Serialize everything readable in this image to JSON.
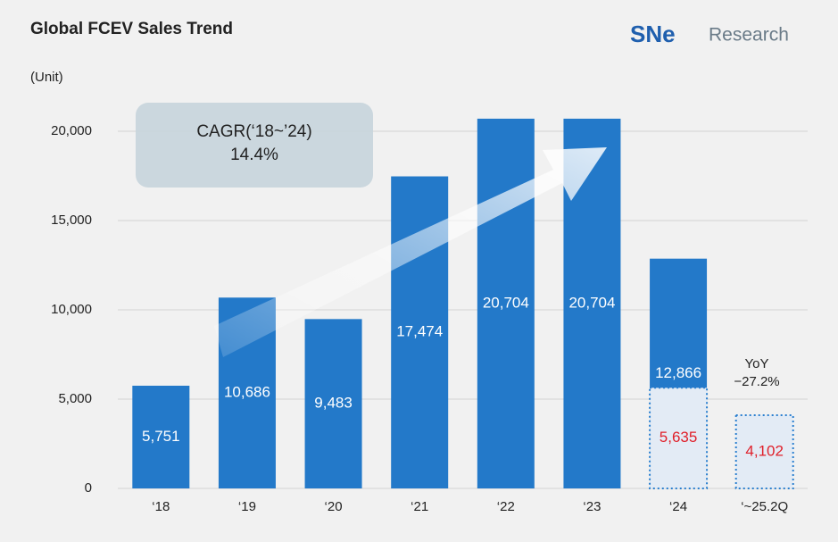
{
  "chart_data": {
    "type": "bar",
    "title": "Global FCEV Sales Trend",
    "logo": {
      "brand": "SNe",
      "suffix": "Research"
    },
    "unit_label": "(Unit)",
    "annotations": {
      "cagr_title": "CAGR(‘18~’24)",
      "cagr_value": "14.4%",
      "yoy_title": "YoY",
      "yoy_value": "−27.2%"
    },
    "categories": [
      "‘18",
      "‘19",
      "‘20",
      "‘21",
      "‘22",
      "‘23",
      "‘24",
      "‘~25.2Q"
    ],
    "series": [
      {
        "color": "#2379c9",
        "values": [
          5751,
          10686,
          9483,
          17474,
          20704,
          20704,
          12866,
          null
        ],
        "value_labels": [
          "5,751",
          "10,686",
          "9,483",
          "17,474",
          "20,704",
          "20,704",
          "12,866",
          null
        ],
        "label_color": "#ffffff"
      },
      {
        "color": "#2a7fcf",
        "values": [
          null,
          null,
          null,
          null,
          null,
          null,
          5635,
          4102
        ],
        "value_labels": [
          null,
          null,
          null,
          null,
          null,
          null,
          "5,635",
          "4,102"
        ],
        "label_color": "#e0202a"
      }
    ],
    "ylim": [
      0,
      21000
    ],
    "yticks": [
      0,
      {
        "value": 5000,
        "label": "5,000"
      },
      {
        "value": 10000,
        "label": "10,000"
      },
      {
        "value": 15000,
        "label": "15,000"
      },
      {
        "value": 20000,
        "label": "20,000"
      }
    ],
    "grid": true
  }
}
